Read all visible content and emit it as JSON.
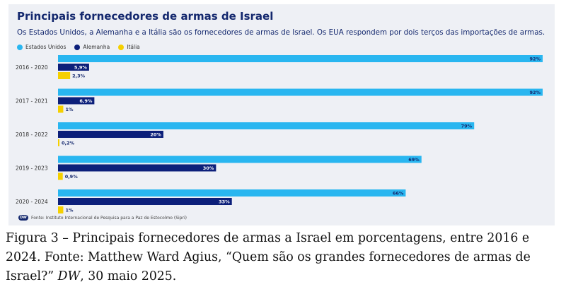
{
  "chart_data": {
    "type": "bar",
    "orientation": "horizontal",
    "title": "Principais fornecedores de armas de Israel",
    "subtitle": "Os Estados Unidos, a Alemanha e a Itália são os fornecedores de armas de Israel. Os EUA respondem por dois terços das importações de armas.",
    "categories": [
      "2016 - 2020",
      "2017 - 2021",
      "2018 - 2022",
      "2019 - 2023",
      "2020 - 2024"
    ],
    "series": [
      {
        "name": "Estados Unidos",
        "color": "#29b6f0",
        "values": [
          92,
          92,
          79,
          69,
          66
        ],
        "labels": [
          "92%",
          "92%",
          "79%",
          "69%",
          "66%"
        ]
      },
      {
        "name": "Alemanha",
        "color": "#0c1f7a",
        "values": [
          5.9,
          6.9,
          20,
          30,
          33
        ],
        "labels": [
          "5,9%",
          "6,9%",
          "20%",
          "30%",
          "33%"
        ]
      },
      {
        "name": "Itália",
        "color": "#f5d000",
        "values": [
          2.3,
          1,
          0.2,
          0.9,
          1
        ],
        "labels": [
          "2,3%",
          "1%",
          "0,2%",
          "0,9%",
          "1%"
        ]
      }
    ],
    "xlim": [
      0,
      92
    ],
    "legend_position": "top-left",
    "grid": false,
    "source": "Fonte: Instituto Internacional de Pesquisa para a Paz de Estocolmo (Sipri)",
    "logo_text": "DW"
  },
  "caption": {
    "main": "Figura 3 – Principais fornecedores de armas a Israel em porcentagens, entre 2016 e 2024. Fonte: Matthew Ward Agius, “Quem são os grandes fornecedores de armas de Israel?” ",
    "publication": "DW",
    "date": ", 30 maio 2025."
  }
}
